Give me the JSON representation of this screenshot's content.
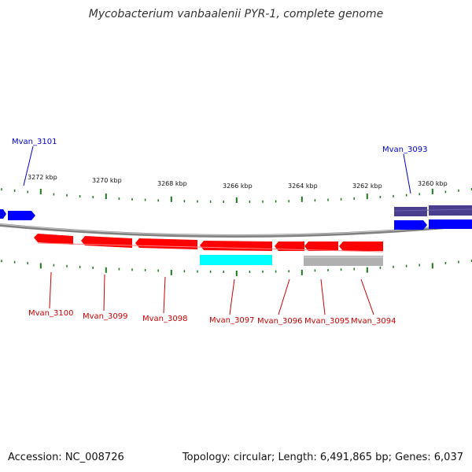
{
  "title": "Mycobacterium vanbaalenii PYR-1, complete genome",
  "footer": {
    "accession": "Accession: NC_008726",
    "summary": "Topology: circular; Length: 6,491,865 bp; Genes: 6,037"
  },
  "colors": {
    "backbone": "#808080",
    "tick": "#1a7a1a",
    "forward_cds": "#0000ff",
    "forward_dark": "#4a3f8f",
    "reverse_cds": "#ff0000",
    "rna": "#00ffff",
    "other": "#b0b0b0",
    "label_forward": "#0000cc",
    "label_reverse": "#cc0000"
  },
  "scale_labels": [
    "3272 kbp",
    "3270 kbp",
    "3268 kbp",
    "3266 kbp",
    "3264 kbp",
    "3262 kbp",
    "3260 kbp"
  ],
  "gene_labels": {
    "forward": [
      "Mvan_3101",
      "Mvan_3093"
    ],
    "reverse": [
      "Mvan_3100",
      "Mvan_3099",
      "Mvan_3098",
      "Mvan_3097",
      "Mvan_3096",
      "Mvan_3095",
      "Mvan_3094"
    ]
  }
}
